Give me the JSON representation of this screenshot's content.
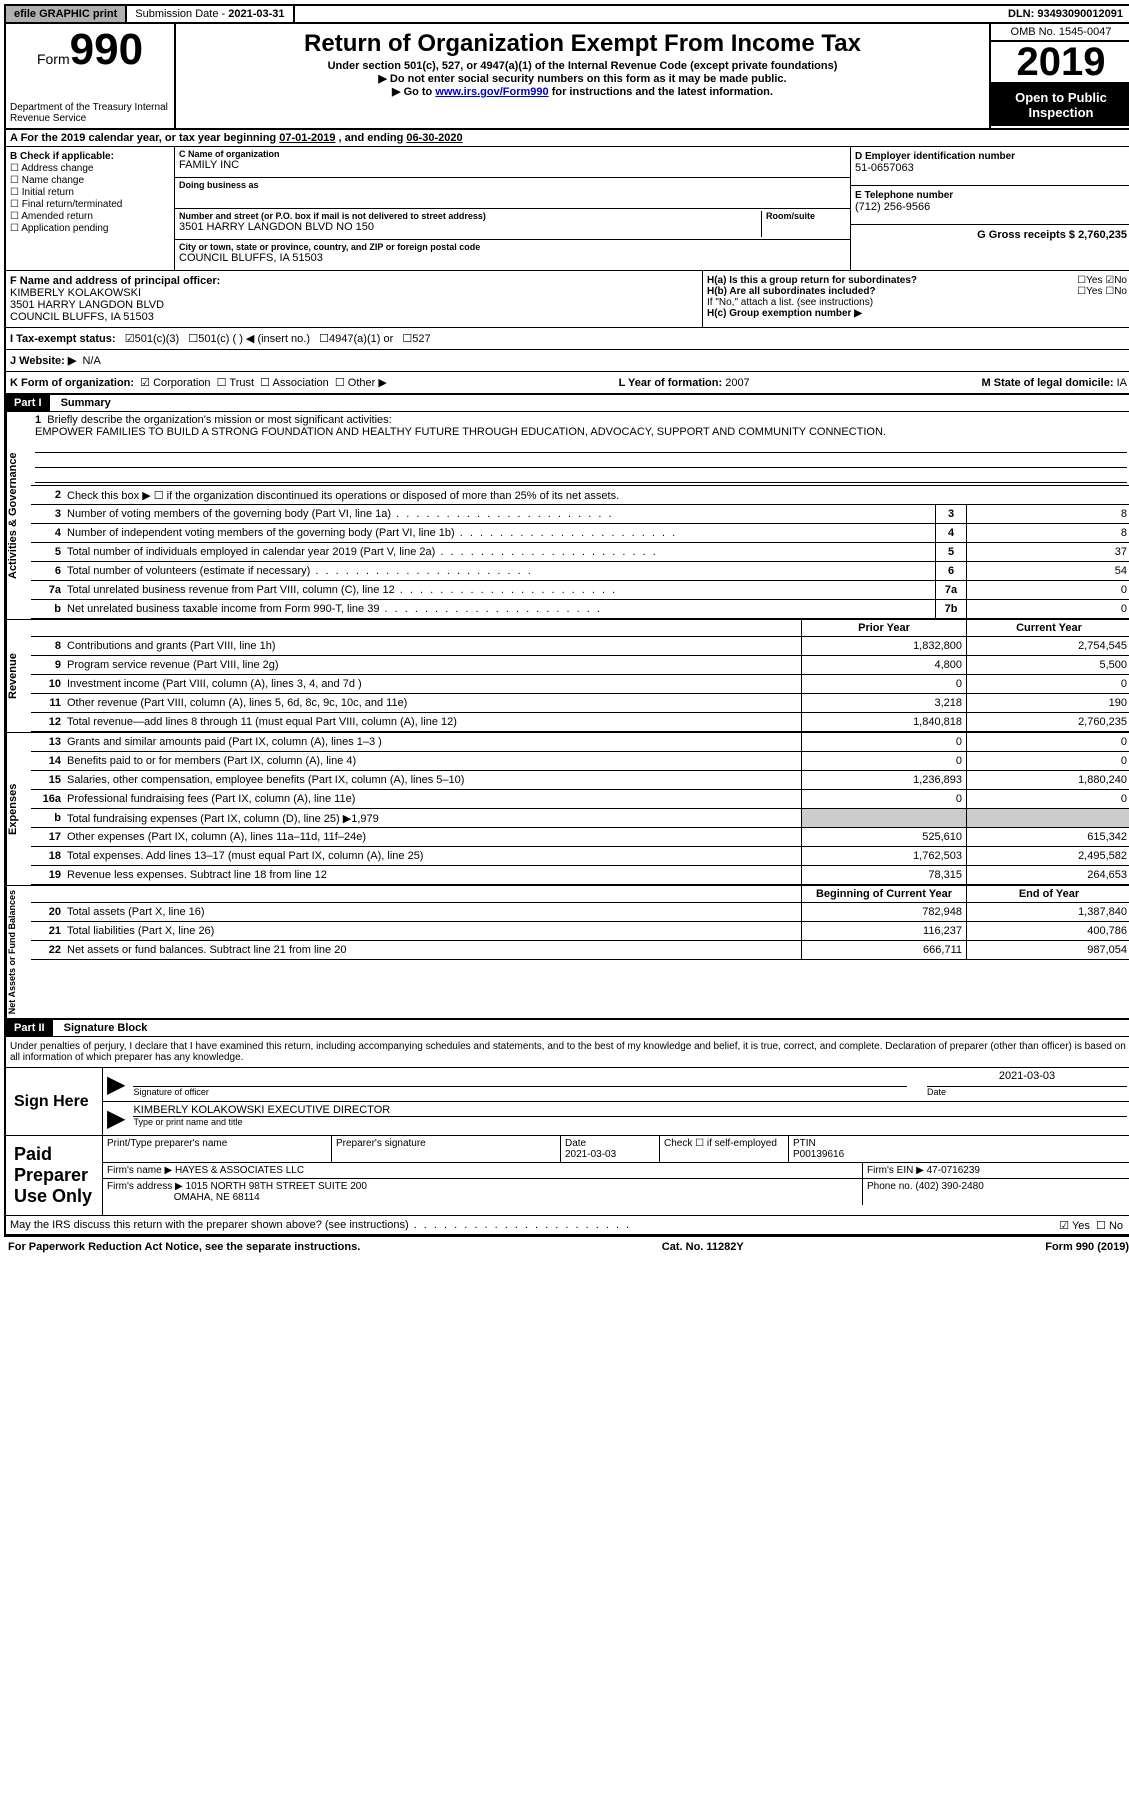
{
  "topbar": {
    "efile": "efile GRAPHIC print",
    "submission_label": "Submission Date - ",
    "submission_date": "2021-03-31",
    "dln_label": "DLN: ",
    "dln": "93493090012091"
  },
  "header": {
    "form_label": "Form",
    "form_no": "990",
    "dept": "Department of the Treasury\nInternal Revenue Service",
    "title": "Return of Organization Exempt From Income Tax",
    "sub1": "Under section 501(c), 527, or 4947(a)(1) of the Internal Revenue Code (except private foundations)",
    "sub2": "Do not enter social security numbers on this form as it may be made public.",
    "sub3_pre": "Go to ",
    "sub3_link": "www.irs.gov/Form990",
    "sub3_post": " for instructions and the latest information.",
    "omb": "OMB No. 1545-0047",
    "year": "2019",
    "open": "Open to Public Inspection"
  },
  "period": {
    "text_a": "A For the 2019 calendar year, or tax year beginning ",
    "begin": "07-01-2019",
    "text_b": " , and ending ",
    "end": "06-30-2020"
  },
  "section_b": {
    "label": "B Check if applicable:",
    "opts": [
      "Address change",
      "Name change",
      "Initial return",
      "Final return/terminated",
      "Amended return",
      "Application pending"
    ]
  },
  "section_c": {
    "name_label": "C Name of organization",
    "name": "FAMILY INC",
    "dba_label": "Doing business as",
    "dba": "",
    "addr_label": "Number and street (or P.O. box if mail is not delivered to street address)",
    "room_label": "Room/suite",
    "addr": "3501 HARRY LANGDON BLVD NO 150",
    "city_label": "City or town, state or province, country, and ZIP or foreign postal code",
    "city": "COUNCIL BLUFFS, IA  51503"
  },
  "section_d": {
    "ein_label": "D Employer identification number",
    "ein": "51-0657063",
    "phone_label": "E Telephone number",
    "phone": "(712) 256-9566",
    "gross_label": "G Gross receipts $ ",
    "gross": "2,760,235"
  },
  "section_f": {
    "label": "F Name and address of principal officer:",
    "name": "KIMBERLY KOLAKOWSKI",
    "addr": "3501 HARRY LANGDON BLVD",
    "city": "COUNCIL BLUFFS, IA  51503"
  },
  "section_h": {
    "ha": "H(a)  Is this a group return for subordinates?",
    "hb": "H(b)  Are all subordinates included?",
    "hb_note": "If \"No,\" attach a list. (see instructions)",
    "hc": "H(c)  Group exemption number ▶",
    "yes": "Yes",
    "no": "No"
  },
  "tax_status": {
    "label": "I   Tax-exempt status:",
    "o1": "501(c)(3)",
    "o2": "501(c) (   ) ◀ (insert no.)",
    "o3": "4947(a)(1) or",
    "o4": "527"
  },
  "website": {
    "label": "J   Website: ▶",
    "value": "N/A"
  },
  "k_row": {
    "label": "K Form of organization:",
    "opts": [
      "Corporation",
      "Trust",
      "Association",
      "Other ▶"
    ],
    "l_label": "L Year of formation: ",
    "l_val": "2007",
    "m_label": "M State of legal domicile: ",
    "m_val": "IA"
  },
  "part1": {
    "header": "Part I",
    "title": "Summary",
    "q1": "Briefly describe the organization's mission or most significant activities:",
    "mission": "EMPOWER FAMILIES TO BUILD A STRONG FOUNDATION AND HEALTHY FUTURE THROUGH EDUCATION, ADVOCACY, SUPPORT AND COMMUNITY CONNECTION.",
    "q2": "Check this box ▶ ☐  if the organization discontinued its operations or disposed of more than 25% of its net assets.",
    "side_ag": "Activities & Governance",
    "side_rev": "Revenue",
    "side_exp": "Expenses",
    "side_na": "Net Assets or Fund Balances",
    "lines_ag": [
      {
        "n": "3",
        "d": "Number of voting members of the governing body (Part VI, line 1a)",
        "box": "3",
        "v": "8"
      },
      {
        "n": "4",
        "d": "Number of independent voting members of the governing body (Part VI, line 1b)",
        "box": "4",
        "v": "8"
      },
      {
        "n": "5",
        "d": "Total number of individuals employed in calendar year 2019 (Part V, line 2a)",
        "box": "5",
        "v": "37"
      },
      {
        "n": "6",
        "d": "Total number of volunteers (estimate if necessary)",
        "box": "6",
        "v": "54"
      },
      {
        "n": "7a",
        "d": "Total unrelated business revenue from Part VIII, column (C), line 12",
        "box": "7a",
        "v": "0"
      },
      {
        "n": "b",
        "d": "Net unrelated business taxable income from Form 990-T, line 39",
        "box": "7b",
        "v": "0"
      }
    ],
    "col_prior": "Prior Year",
    "col_current": "Current Year",
    "col_boy": "Beginning of Current Year",
    "col_eoy": "End of Year",
    "lines_rev": [
      {
        "n": "8",
        "d": "Contributions and grants (Part VIII, line 1h)",
        "p": "1,832,800",
        "c": "2,754,545"
      },
      {
        "n": "9",
        "d": "Program service revenue (Part VIII, line 2g)",
        "p": "4,800",
        "c": "5,500"
      },
      {
        "n": "10",
        "d": "Investment income (Part VIII, column (A), lines 3, 4, and 7d )",
        "p": "0",
        "c": "0"
      },
      {
        "n": "11",
        "d": "Other revenue (Part VIII, column (A), lines 5, 6d, 8c, 9c, 10c, and 11e)",
        "p": "3,218",
        "c": "190"
      },
      {
        "n": "12",
        "d": "Total revenue—add lines 8 through 11 (must equal Part VIII, column (A), line 12)",
        "p": "1,840,818",
        "c": "2,760,235"
      }
    ],
    "lines_exp": [
      {
        "n": "13",
        "d": "Grants and similar amounts paid (Part IX, column (A), lines 1–3 )",
        "p": "0",
        "c": "0"
      },
      {
        "n": "14",
        "d": "Benefits paid to or for members (Part IX, column (A), line 4)",
        "p": "0",
        "c": "0"
      },
      {
        "n": "15",
        "d": "Salaries, other compensation, employee benefits (Part IX, column (A), lines 5–10)",
        "p": "1,236,893",
        "c": "1,880,240"
      },
      {
        "n": "16a",
        "d": "Professional fundraising fees (Part IX, column (A), line 11e)",
        "p": "0",
        "c": "0"
      },
      {
        "n": "b",
        "d": "Total fundraising expenses (Part IX, column (D), line 25) ▶1,979",
        "p": "",
        "c": "",
        "gray": true
      },
      {
        "n": "17",
        "d": "Other expenses (Part IX, column (A), lines 11a–11d, 11f–24e)",
        "p": "525,610",
        "c": "615,342"
      },
      {
        "n": "18",
        "d": "Total expenses. Add lines 13–17 (must equal Part IX, column (A), line 25)",
        "p": "1,762,503",
        "c": "2,495,582"
      },
      {
        "n": "19",
        "d": "Revenue less expenses. Subtract line 18 from line 12",
        "p": "78,315",
        "c": "264,653"
      }
    ],
    "lines_na": [
      {
        "n": "20",
        "d": "Total assets (Part X, line 16)",
        "p": "782,948",
        "c": "1,387,840"
      },
      {
        "n": "21",
        "d": "Total liabilities (Part X, line 26)",
        "p": "116,237",
        "c": "400,786"
      },
      {
        "n": "22",
        "d": "Net assets or fund balances. Subtract line 21 from line 20",
        "p": "666,711",
        "c": "987,054"
      }
    ]
  },
  "part2": {
    "header": "Part II",
    "title": "Signature Block",
    "penalty": "Under penalties of perjury, I declare that I have examined this return, including accompanying schedules and statements, and to the best of my knowledge and belief, it is true, correct, and complete. Declaration of preparer (other than officer) is based on all information of which preparer has any knowledge.",
    "sign_here": "Sign Here",
    "sig_officer": "Signature of officer",
    "sig_date_label": "Date",
    "sig_date": "2021-03-03",
    "sig_name": "KIMBERLY KOLAKOWSKI  EXECUTIVE DIRECTOR",
    "sig_name_label": "Type or print name and title",
    "paid": "Paid Preparer Use Only",
    "prep_name_label": "Print/Type preparer's name",
    "prep_sig_label": "Preparer's signature",
    "prep_date_label": "Date",
    "prep_date": "2021-03-03",
    "prep_check": "Check ☐ if self-employed",
    "ptin_label": "PTIN",
    "ptin": "P00139616",
    "firm_name_label": "Firm's name    ▶ ",
    "firm_name": "HAYES & ASSOCIATES LLC",
    "firm_ein_label": "Firm's EIN ▶ ",
    "firm_ein": "47-0716239",
    "firm_addr_label": "Firm's address ▶ ",
    "firm_addr": "1015 NORTH 98TH STREET SUITE 200",
    "firm_city": "OMAHA, NE  68114",
    "firm_phone_label": "Phone no. ",
    "firm_phone": "(402) 390-2480",
    "discuss": "May the IRS discuss this return with the preparer shown above? (see instructions)"
  },
  "footer": {
    "left": "For Paperwork Reduction Act Notice, see the separate instructions.",
    "mid": "Cat. No. 11282Y",
    "right": "Form 990 (2019)"
  }
}
